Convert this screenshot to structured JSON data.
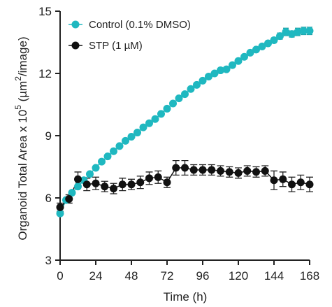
{
  "chart_data": {
    "type": "line",
    "title": "",
    "xlabel": "Time (h)",
    "ylabel": "Organoid Total Area x 10",
    "ylabel_sup": "5",
    "ylabel_unit_prefix": " (µm",
    "ylabel_unit_sup": "2",
    "ylabel_unit_suffix": "/image)",
    "xlim": [
      0,
      168
    ],
    "ylim": [
      3,
      15
    ],
    "xticks": [
      0,
      24,
      48,
      72,
      96,
      120,
      144,
      168
    ],
    "yticks": [
      3,
      6,
      9,
      12,
      15
    ],
    "grid": false,
    "legend_position": "top-left",
    "series": [
      {
        "name": "Control (0.1% DMSO)",
        "color": "#1fb8c0",
        "marker": "circle",
        "x": [
          0,
          4,
          8,
          12,
          16,
          20,
          24,
          28,
          32,
          36,
          40,
          44,
          48,
          52,
          56,
          60,
          64,
          68,
          72,
          76,
          80,
          84,
          88,
          92,
          96,
          100,
          104,
          108,
          112,
          116,
          120,
          124,
          128,
          132,
          136,
          140,
          144,
          148,
          152,
          156,
          160,
          164,
          168
        ],
        "y": [
          5.25,
          5.9,
          6.25,
          6.55,
          6.85,
          7.15,
          7.45,
          7.75,
          8.0,
          8.25,
          8.5,
          8.75,
          8.95,
          9.15,
          9.4,
          9.6,
          9.8,
          10.05,
          10.3,
          10.55,
          10.8,
          11.0,
          11.25,
          11.45,
          11.65,
          11.85,
          12.0,
          12.15,
          12.2,
          12.4,
          12.6,
          12.8,
          13.0,
          13.15,
          13.3,
          13.45,
          13.6,
          13.8,
          14.0,
          13.9,
          14.0,
          14.05,
          14.05
        ],
        "error": [
          0.1,
          0.1,
          0.1,
          0.1,
          0.1,
          0.1,
          0.1,
          0.1,
          0.1,
          0.1,
          0.1,
          0.1,
          0.1,
          0.1,
          0.1,
          0.1,
          0.1,
          0.1,
          0.1,
          0.1,
          0.1,
          0.1,
          0.1,
          0.1,
          0.1,
          0.1,
          0.1,
          0.1,
          0.1,
          0.1,
          0.1,
          0.1,
          0.1,
          0.1,
          0.1,
          0.1,
          0.12,
          0.15,
          0.18,
          0.15,
          0.18,
          0.18,
          0.18
        ]
      },
      {
        "name": "STP (1 µM)",
        "color": "#111111",
        "marker": "circle",
        "x": [
          0,
          6,
          12,
          18,
          24,
          30,
          36,
          42,
          48,
          54,
          60,
          66,
          72,
          78,
          84,
          90,
          96,
          102,
          108,
          114,
          120,
          126,
          132,
          138,
          144,
          150,
          156,
          162,
          168
        ],
        "y": [
          5.55,
          5.95,
          6.9,
          6.65,
          6.7,
          6.55,
          6.45,
          6.65,
          6.65,
          6.75,
          6.95,
          7.0,
          6.75,
          7.45,
          7.45,
          7.35,
          7.35,
          7.35,
          7.3,
          7.25,
          7.2,
          7.3,
          7.25,
          7.3,
          6.85,
          6.9,
          6.65,
          6.75,
          6.65
        ],
        "error": [
          0.2,
          0.2,
          0.35,
          0.3,
          0.3,
          0.25,
          0.25,
          0.3,
          0.25,
          0.3,
          0.3,
          0.3,
          0.25,
          0.35,
          0.35,
          0.25,
          0.25,
          0.25,
          0.25,
          0.25,
          0.25,
          0.25,
          0.25,
          0.25,
          0.45,
          0.35,
          0.35,
          0.35,
          0.35
        ]
      }
    ]
  }
}
